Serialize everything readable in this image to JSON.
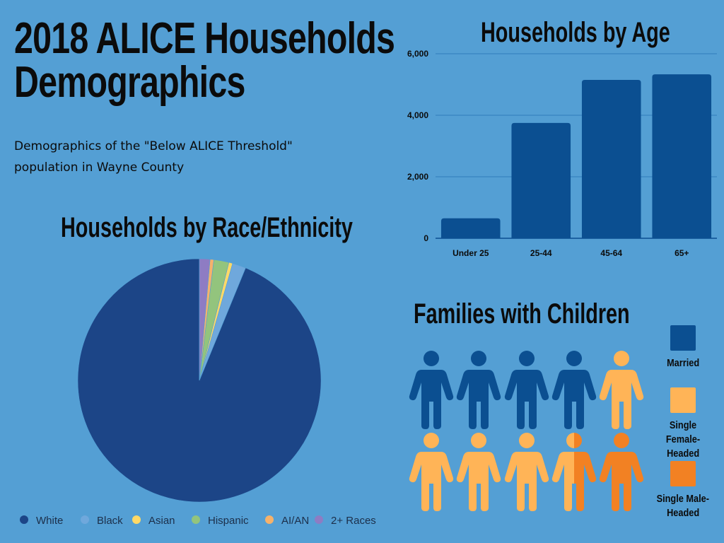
{
  "page": {
    "title_line1": "2018 ALICE Households",
    "title_line2": "Demographics",
    "subtitle": "Demographics of the \"Below ALICE Threshold\" population in Wayne County"
  },
  "chart_data": [
    {
      "type": "pie",
      "title": "Households by Race/Ethnicity",
      "categories": [
        "White",
        "Black",
        "Asian",
        "Hispanic",
        "AI/AN",
        "2+ Races"
      ],
      "values": [
        93.8,
        1.8,
        0.5,
        2.0,
        0.5,
        1.4
      ],
      "colors": [
        "#1c4587",
        "#6fa8dc",
        "#ffd966",
        "#93c47d",
        "#f6b26b",
        "#8e7cc3"
      ],
      "legend": "bottom"
    },
    {
      "type": "bar",
      "title": "Households by Age",
      "categories": [
        "Under 25",
        "25-44",
        "45-64",
        "65+"
      ],
      "values": [
        650,
        3750,
        5150,
        5330
      ],
      "ylim": [
        0,
        6000
      ],
      "yticks": [
        "0",
        "2,000",
        "4,000",
        "6,000"
      ],
      "xlabel": "",
      "ylabel": "",
      "grid": true,
      "color": "#0b4f91"
    },
    {
      "type": "pictogram",
      "title": "Families with Children",
      "total_icons": 10,
      "categories": [
        "Married",
        "Single Female-Headed",
        "Single Male-Headed"
      ],
      "values": [
        4,
        4.5,
        1.5
      ],
      "colors": [
        "#0b4f91",
        "#ffb457",
        "#f28123"
      ],
      "legend_lines": [
        [
          "Married"
        ],
        [
          "Single Female-",
          "Headed"
        ],
        [
          "Single Male-",
          "Headed"
        ]
      ]
    }
  ]
}
